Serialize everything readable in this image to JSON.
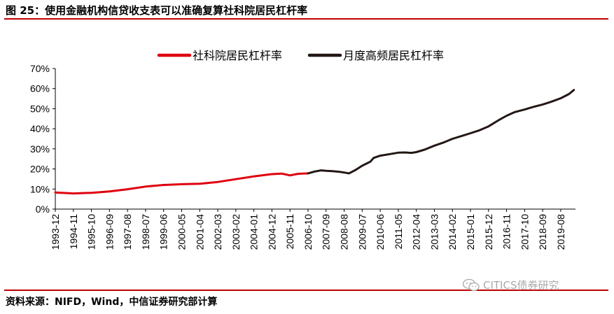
{
  "header": {
    "title": "图 25：使用金融机构信贷收支表可以准确复算社科院居民杠杆率"
  },
  "footer": {
    "source": "资料来源：NIFD，Wind，中信证券研究部计算",
    "watermark": "CITICS债券研究",
    "watermark_icon": "wechat-icon"
  },
  "colors": {
    "accent_rule": "#c00000",
    "series_red": "#e0000f",
    "series_dark": "#231815"
  },
  "chart_data": {
    "type": "line",
    "title": "",
    "xlabel": "",
    "ylabel": "",
    "ylim": [
      0,
      70
    ],
    "y_unit": "%",
    "yticks": [
      "0%",
      "10%",
      "20%",
      "30%",
      "40%",
      "50%",
      "60%",
      "70%"
    ],
    "xticks": [
      "1993-12",
      "1994-11",
      "1995-10",
      "1996-09",
      "1997-08",
      "1998-07",
      "1999-06",
      "2000-05",
      "2001-04",
      "2002-03",
      "2003-02",
      "2004-01",
      "2004-12",
      "2005-11",
      "2006-10",
      "2007-09",
      "2008-08",
      "2009-07",
      "2010-06",
      "2011-05",
      "2012-04",
      "2013-03",
      "2014-02",
      "2015-01",
      "2015-12",
      "2016-11",
      "2017-10",
      "2018-09",
      "2019-08"
    ],
    "grid": false,
    "legend_position": "top-center",
    "series": [
      {
        "name": "社科院居民杠杆率",
        "color": "#e0000f",
        "points": [
          [
            "1993-12",
            8.3
          ],
          [
            "1994-11",
            7.8
          ],
          [
            "1995-10",
            8.1
          ],
          [
            "1996-09",
            8.8
          ],
          [
            "1997-08",
            9.9
          ],
          [
            "1998-07",
            11.2
          ],
          [
            "1999-06",
            12.0
          ],
          [
            "2000-05",
            12.4
          ],
          [
            "2001-04",
            12.6
          ],
          [
            "2002-03",
            13.5
          ],
          [
            "2003-02",
            14.9
          ],
          [
            "2004-01",
            16.3
          ],
          [
            "2004-12",
            17.4
          ],
          [
            "2005-06",
            17.7
          ],
          [
            "2005-11",
            16.8
          ],
          [
            "2006-04",
            17.6
          ],
          [
            "2006-10",
            17.8
          ]
        ]
      },
      {
        "name": "月度高频居民杠杆率",
        "color": "#231815",
        "points": [
          [
            "2006-10",
            17.8
          ],
          [
            "2007-02",
            18.7
          ],
          [
            "2007-06",
            19.3
          ],
          [
            "2007-09",
            19.1
          ],
          [
            "2008-01",
            18.9
          ],
          [
            "2008-05",
            18.6
          ],
          [
            "2008-08",
            18.2
          ],
          [
            "2008-11",
            17.8
          ],
          [
            "2009-03",
            19.5
          ],
          [
            "2009-07",
            21.6
          ],
          [
            "2009-12",
            23.6
          ],
          [
            "2010-02",
            25.5
          ],
          [
            "2010-06",
            26.6
          ],
          [
            "2010-12",
            27.4
          ],
          [
            "2011-05",
            28.1
          ],
          [
            "2011-09",
            28.2
          ],
          [
            "2012-01",
            28.0
          ],
          [
            "2012-04",
            28.4
          ],
          [
            "2012-09",
            29.6
          ],
          [
            "2013-03",
            31.6
          ],
          [
            "2013-09",
            33.3
          ],
          [
            "2014-02",
            35.0
          ],
          [
            "2014-08",
            36.5
          ],
          [
            "2015-01",
            37.8
          ],
          [
            "2015-06",
            39.1
          ],
          [
            "2015-12",
            41.2
          ],
          [
            "2016-06",
            44.2
          ],
          [
            "2016-11",
            46.5
          ],
          [
            "2017-04",
            48.3
          ],
          [
            "2017-10",
            49.6
          ],
          [
            "2018-03",
            50.8
          ],
          [
            "2018-09",
            52.1
          ],
          [
            "2019-02",
            53.4
          ],
          [
            "2019-08",
            55.2
          ],
          [
            "2020-01",
            57.3
          ],
          [
            "2020-04",
            59.3
          ]
        ]
      }
    ]
  }
}
